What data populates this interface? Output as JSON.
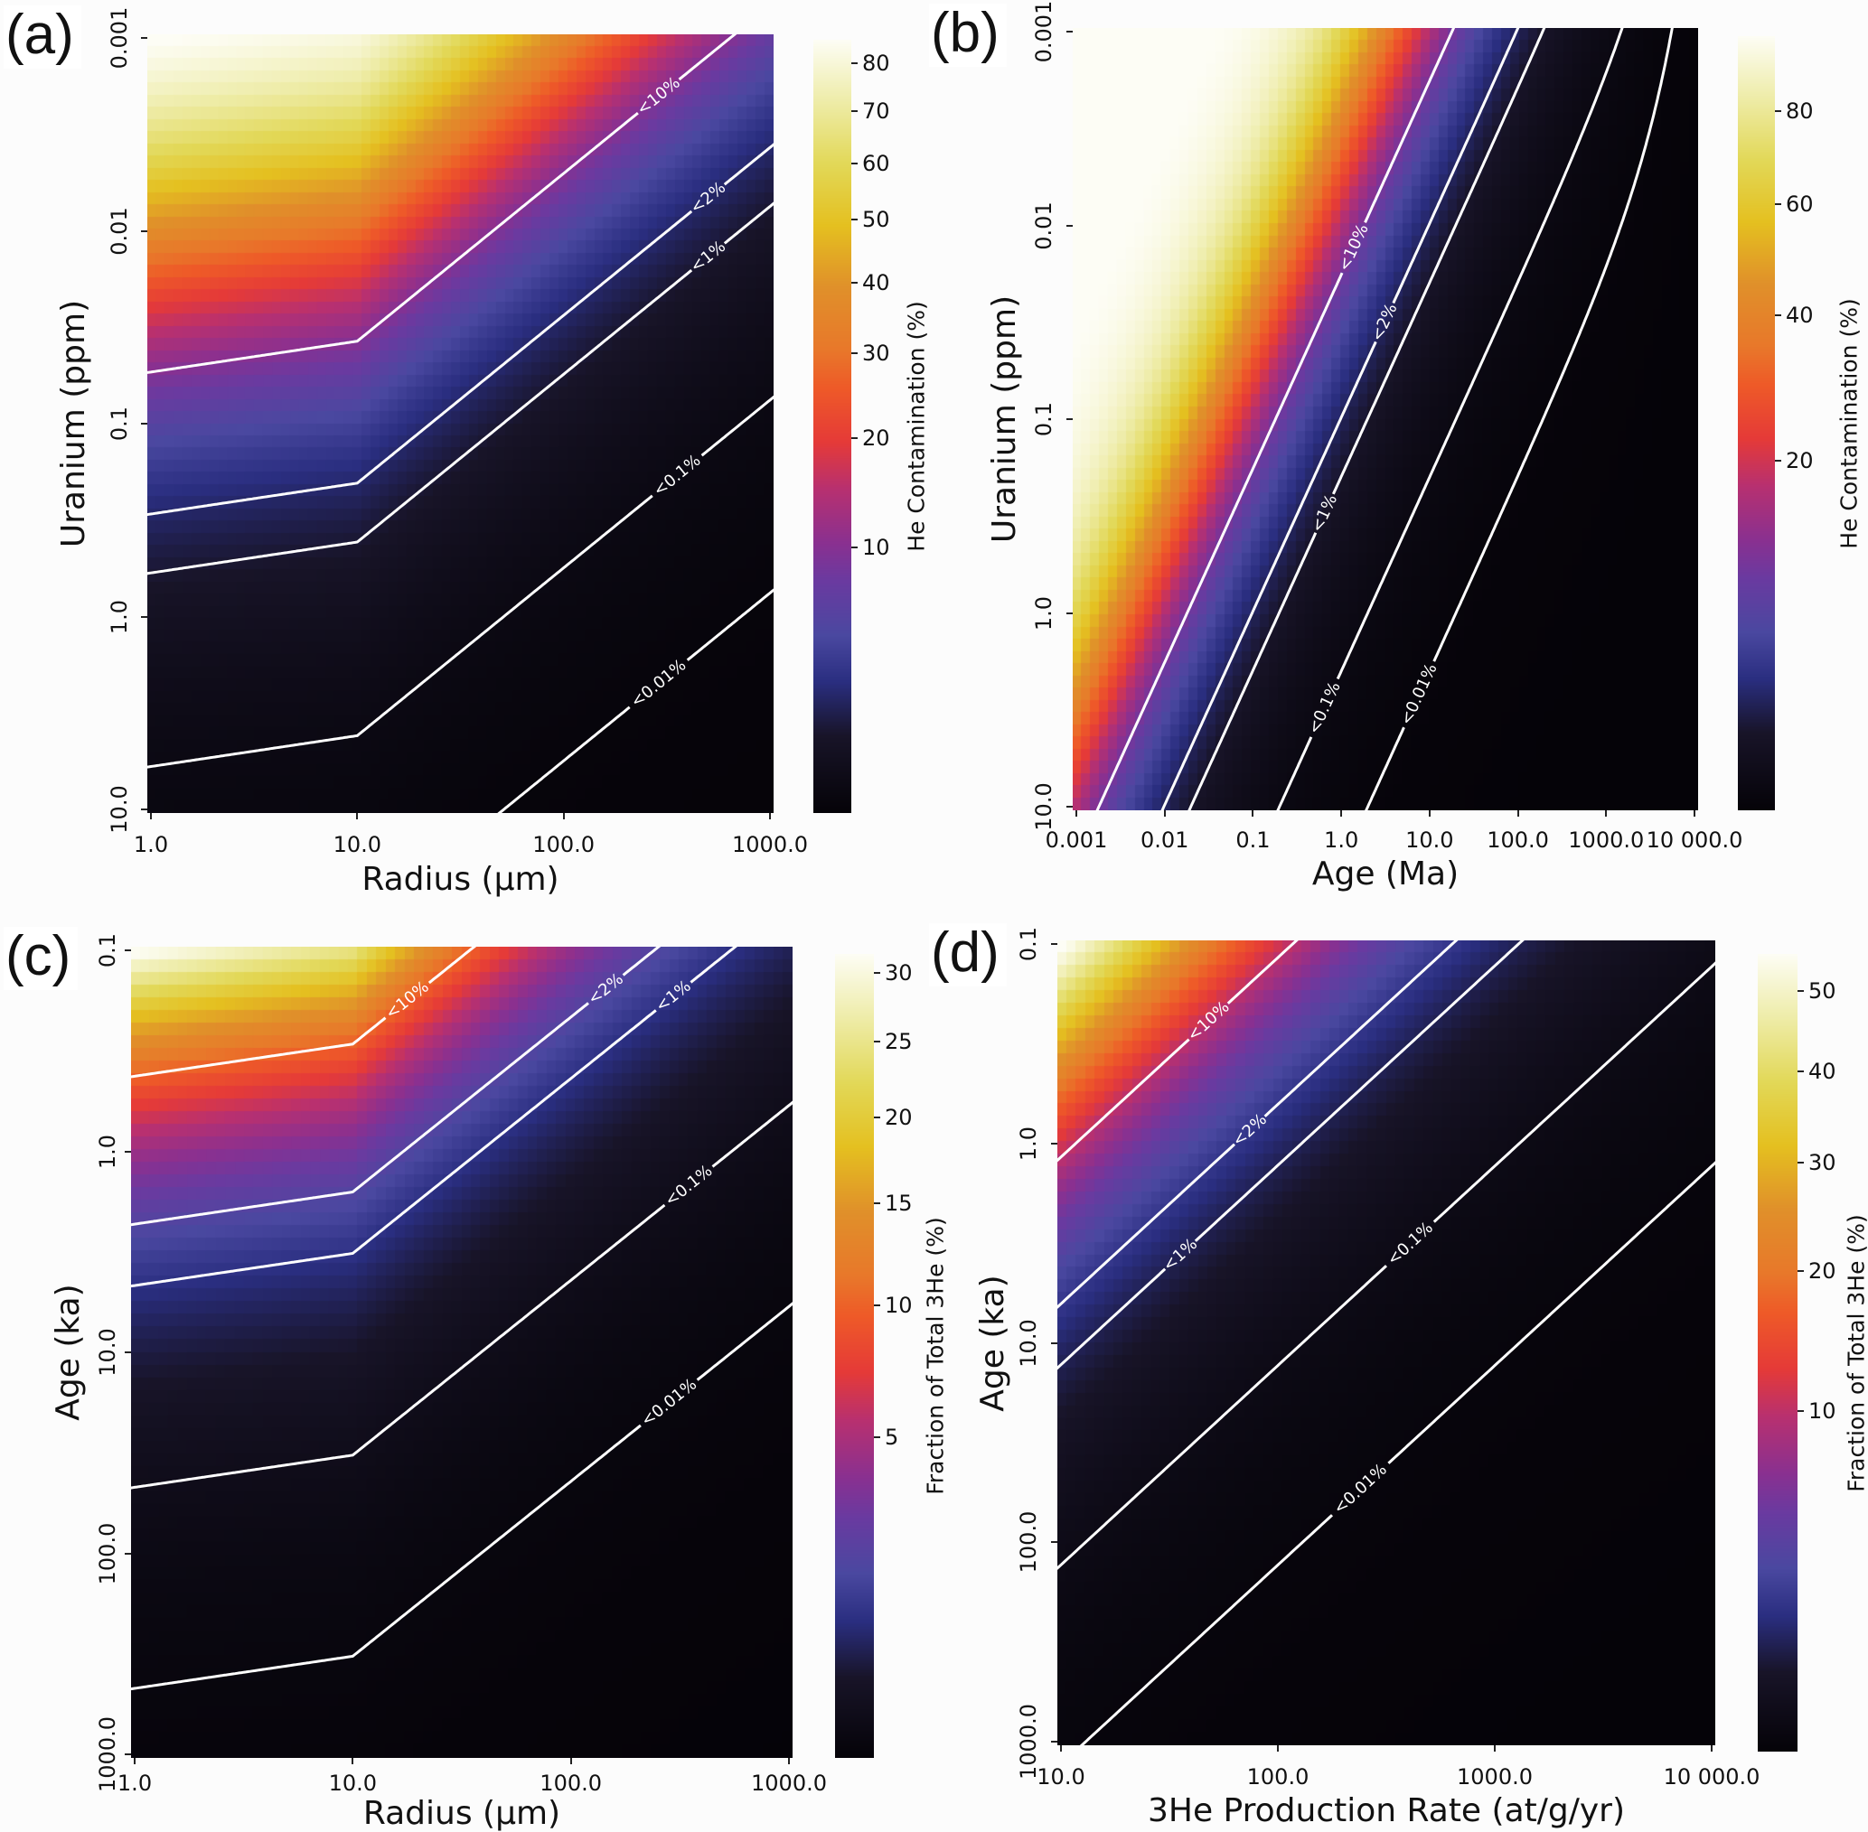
{
  "colormap": [
    [
      0.0,
      "#050308"
    ],
    [
      0.1,
      "#181428"
    ],
    [
      0.17,
      "#2a2e80"
    ],
    [
      0.23,
      "#4a48a0"
    ],
    [
      0.3,
      "#6a3aa0"
    ],
    [
      0.35,
      "#8a3090"
    ],
    [
      0.42,
      "#b83070"
    ],
    [
      0.48,
      "#e53a38"
    ],
    [
      0.55,
      "#ee5a28"
    ],
    [
      0.6,
      "#e8782a"
    ],
    [
      0.68,
      "#e0902a"
    ],
    [
      0.76,
      "#e4c020"
    ],
    [
      0.84,
      "#e2d858"
    ],
    [
      0.92,
      "#eeeca8"
    ],
    [
      1.0,
      "#fdfdf5"
    ]
  ],
  "contour_color": "#ffffff",
  "chart_data": [
    {
      "type": "heatmap",
      "panel_label": "(a)",
      "xlabel": "Radius (µm)",
      "ylabel": "Uranium (ppm)",
      "x_scale": "log",
      "y_scale": "log",
      "y_inverted": true,
      "xlim": [
        1,
        1000
      ],
      "ylim": [
        0.001,
        10
      ],
      "xticks": [
        {
          "v": 1,
          "label": "1.0"
        },
        {
          "v": 10,
          "label": "10.0"
        },
        {
          "v": 100,
          "label": "100.0"
        },
        {
          "v": 1000,
          "label": "1000.0"
        }
      ],
      "yticks": [
        {
          "v": 0.001,
          "label": "0.001"
        },
        {
          "v": 0.01,
          "label": "0.01"
        },
        {
          "v": 0.1,
          "label": "0.1"
        },
        {
          "v": 1,
          "label": "1.0"
        },
        {
          "v": 10,
          "label": "10.0"
        }
      ],
      "colorbar": {
        "label": "He Contamination (%)",
        "range": [
          0,
          85
        ],
        "norm": "power-0.5",
        "ticks": [
          {
            "v": 10,
            "label": "10"
          },
          {
            "v": 20,
            "label": "20"
          },
          {
            "v": 30,
            "label": "30"
          },
          {
            "v": 40,
            "label": "40"
          },
          {
            "v": 50,
            "label": "50"
          },
          {
            "v": 60,
            "label": "60"
          },
          {
            "v": 70,
            "label": "70"
          },
          {
            "v": 80,
            "label": "80"
          }
        ]
      },
      "contours": [
        {
          "level": 10,
          "label": "<10%"
        },
        {
          "level": 2,
          "label": "<2%"
        },
        {
          "level": 1,
          "label": "<1%"
        },
        {
          "level": 0.1,
          "label": "<0.1%"
        },
        {
          "level": 0.01,
          "label": "<0.01%"
        }
      ]
    },
    {
      "type": "heatmap",
      "panel_label": "(b)",
      "xlabel": "Age (Ma)",
      "ylabel": "Uranium (ppm)",
      "x_scale": "log",
      "y_scale": "log",
      "y_inverted": true,
      "xlim": [
        0.001,
        10000
      ],
      "ylim": [
        0.001,
        10
      ],
      "xticks": [
        {
          "v": 0.001,
          "label": "0.001"
        },
        {
          "v": 0.01,
          "label": "0.01"
        },
        {
          "v": 0.1,
          "label": "0.1"
        },
        {
          "v": 1,
          "label": "1.0"
        },
        {
          "v": 10,
          "label": "10.0"
        },
        {
          "v": 100,
          "label": "100.0"
        },
        {
          "v": 1000,
          "label": "1000.0"
        },
        {
          "v": 10000,
          "label": "10 000.0"
        }
      ],
      "yticks": [
        {
          "v": 0.001,
          "label": "0.001"
        },
        {
          "v": 0.01,
          "label": "0.01"
        },
        {
          "v": 0.1,
          "label": "0.1"
        },
        {
          "v": 1,
          "label": "1.0"
        },
        {
          "v": 10,
          "label": "10.0"
        }
      ],
      "colorbar": {
        "label": "He Contamination (%)",
        "range": [
          0,
          98
        ],
        "norm": "power-0.5",
        "ticks": [
          {
            "v": 20,
            "label": "20"
          },
          {
            "v": 40,
            "label": "40"
          },
          {
            "v": 60,
            "label": "60"
          },
          {
            "v": 80,
            "label": "80"
          }
        ]
      },
      "contours": [
        {
          "level": 10,
          "label": "<10%"
        },
        {
          "level": 2,
          "label": "<2%"
        },
        {
          "level": 1,
          "label": "<1%"
        },
        {
          "level": 0.1,
          "label": "<0.1%"
        },
        {
          "level": 0.01,
          "label": "<0.01%"
        }
      ]
    },
    {
      "type": "heatmap",
      "panel_label": "(c)",
      "xlabel": "Radius (µm)",
      "ylabel": "Age (ka)",
      "x_scale": "log",
      "y_scale": "log",
      "y_inverted": true,
      "xlim": [
        1,
        1000
      ],
      "ylim": [
        0.1,
        1000
      ],
      "xticks": [
        {
          "v": 1,
          "label": "1.0"
        },
        {
          "v": 10,
          "label": "10.0"
        },
        {
          "v": 100,
          "label": "100.0"
        },
        {
          "v": 1000,
          "label": "1000.0"
        }
      ],
      "yticks": [
        {
          "v": 0.1,
          "label": "0.1"
        },
        {
          "v": 1,
          "label": "1.0"
        },
        {
          "v": 10,
          "label": "10.0"
        },
        {
          "v": 100,
          "label": "100.0"
        },
        {
          "v": 1000,
          "label": "1000.0"
        }
      ],
      "colorbar": {
        "label": "Fraction of Total 3He (%)",
        "range": [
          0,
          31.5
        ],
        "norm": "power-0.5",
        "ticks": [
          {
            "v": 5,
            "label": "5"
          },
          {
            "v": 10,
            "label": "10"
          },
          {
            "v": 15,
            "label": "15"
          },
          {
            "v": 20,
            "label": "20"
          },
          {
            "v": 25,
            "label": "25"
          },
          {
            "v": 30,
            "label": "30"
          }
        ]
      },
      "contours": [
        {
          "level": 10,
          "label": "<10%"
        },
        {
          "level": 2,
          "label": "<2%"
        },
        {
          "level": 1,
          "label": "<1%"
        },
        {
          "level": 0.1,
          "label": "<0.1%"
        },
        {
          "level": 0.01,
          "label": "<0.01%"
        }
      ]
    },
    {
      "type": "heatmap",
      "panel_label": "(d)",
      "xlabel": "3He Production Rate (at/g/yr)",
      "ylabel": "Age (ka)",
      "x_scale": "log",
      "y_scale": "log",
      "y_inverted": true,
      "xlim": [
        10,
        10000
      ],
      "ylim": [
        0.1,
        1000
      ],
      "xticks": [
        {
          "v": 10,
          "label": "10.0"
        },
        {
          "v": 100,
          "label": "100.0"
        },
        {
          "v": 1000,
          "label": "1000.0"
        },
        {
          "v": 10000,
          "label": "10 000.0"
        }
      ],
      "yticks": [
        {
          "v": 0.1,
          "label": "0.1"
        },
        {
          "v": 1,
          "label": "1.0"
        },
        {
          "v": 10,
          "label": "10.0"
        },
        {
          "v": 100,
          "label": "100.0"
        },
        {
          "v": 1000,
          "label": "1000.0"
        }
      ],
      "colorbar": {
        "label": "Fraction of Total 3He (%)",
        "range": [
          0,
          55
        ],
        "norm": "power-0.5",
        "ticks": [
          {
            "v": 10,
            "label": "10"
          },
          {
            "v": 20,
            "label": "20"
          },
          {
            "v": 30,
            "label": "30"
          },
          {
            "v": 40,
            "label": "40"
          },
          {
            "v": 50,
            "label": "50"
          }
        ]
      },
      "contours": [
        {
          "level": 10,
          "label": "<10%"
        },
        {
          "level": 2,
          "label": "<2%"
        },
        {
          "level": 1,
          "label": "<1%"
        },
        {
          "level": 0.1,
          "label": "<0.1%"
        },
        {
          "level": 0.01,
          "label": "<0.01%"
        }
      ]
    }
  ]
}
